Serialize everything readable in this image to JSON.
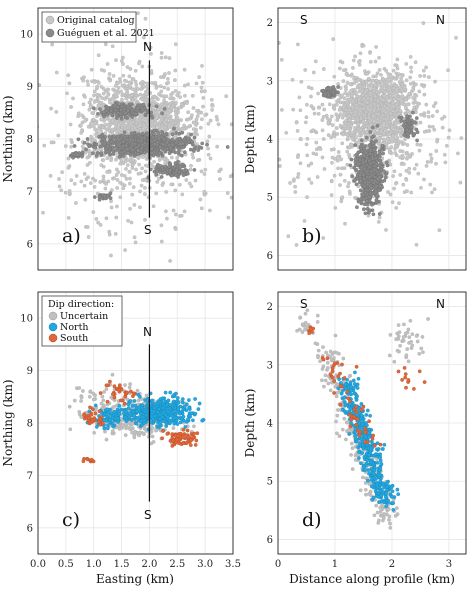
{
  "chart_data": [
    {
      "panel": "a",
      "type": "scatter",
      "panel_label": "a)",
      "xlabel": "",
      "ylabel": "Northing (km)",
      "xlim": [
        0,
        3.5
      ],
      "ylim": [
        5.5,
        10.5
      ],
      "xticks": [],
      "yticks": [
        "6",
        "7",
        "8",
        "9",
        "10"
      ],
      "grid": true,
      "legend": {
        "position": "top-left",
        "entries": [
          "Original catalog",
          "Guéguen et al. 2021"
        ]
      },
      "profile_line": {
        "x": 2.0,
        "y_start": 9.5,
        "y_end": 6.5,
        "start_label": "N",
        "end_label": "S"
      },
      "series": [
        {
          "name": "Original catalog",
          "color": "#c8c8c8",
          "clusters": [
            {
              "cx": 1.8,
              "cy": 8.3,
              "sx": 0.9,
              "sy": 0.8,
              "n": 1100
            },
            {
              "cx": 1.75,
              "cy": 8.0,
              "sx": 1.6,
              "sy": 1.6,
              "n": 520
            }
          ]
        },
        {
          "name": "Guéguen et al. 2021",
          "color": "#8a8a8a",
          "clusters": [
            {
              "cx": 1.9,
              "cy": 7.9,
              "sx": 0.85,
              "sy": 0.18,
              "n": 700
            },
            {
              "cx": 1.55,
              "cy": 8.55,
              "sx": 0.45,
              "sy": 0.12,
              "n": 200
            },
            {
              "cx": 2.4,
              "cy": 7.4,
              "sx": 0.3,
              "sy": 0.12,
              "n": 120
            },
            {
              "cx": 0.7,
              "cy": 7.7,
              "sx": 0.1,
              "sy": 0.05,
              "n": 30
            },
            {
              "cx": 1.2,
              "cy": 6.9,
              "sx": 0.15,
              "sy": 0.05,
              "n": 30
            }
          ]
        }
      ]
    },
    {
      "panel": "b",
      "type": "scatter",
      "panel_label": "b)",
      "xlabel": "",
      "ylabel": "Depth (km)",
      "xlim": [
        0,
        3.3
      ],
      "ylim": [
        6.25,
        1.75
      ],
      "xticks": [],
      "yticks": [
        "2",
        "3",
        "4",
        "5",
        "6"
      ],
      "grid": true,
      "profile_ends": {
        "left": "S",
        "right": "N"
      },
      "series": [
        {
          "name": "Original catalog",
          "color": "#c8c8c8",
          "clusters": [
            {
              "cx": 1.7,
              "cy": 3.5,
              "sx": 0.6,
              "sy": 0.6,
              "n": 1000
            },
            {
              "cx": 1.6,
              "cy": 3.8,
              "sx": 1.5,
              "sy": 1.4,
              "n": 520
            }
          ]
        },
        {
          "name": "Guéguen et al. 2021",
          "color": "#8a8a8a",
          "clusters": [
            {
              "cx": 1.6,
              "cy": 4.6,
              "sx": 0.22,
              "sy": 0.55,
              "n": 600
            },
            {
              "cx": 0.9,
              "cy": 3.2,
              "sx": 0.15,
              "sy": 0.1,
              "n": 60
            },
            {
              "cx": 2.3,
              "cy": 3.8,
              "sx": 0.15,
              "sy": 0.2,
              "n": 60
            }
          ]
        }
      ]
    },
    {
      "panel": "c",
      "type": "scatter",
      "panel_label": "c)",
      "xlabel": "Easting (km)",
      "ylabel": "Northing (km)",
      "xlim": [
        0,
        3.5
      ],
      "ylim": [
        5.5,
        10.5
      ],
      "xticks": [
        "0.0",
        "0.5",
        "1.0",
        "1.5",
        "2.0",
        "2.5",
        "3.0",
        "3.5"
      ],
      "yticks": [
        "6",
        "7",
        "8",
        "9",
        "10"
      ],
      "grid": true,
      "legend": {
        "position": "top-left",
        "title": "Dip direction:",
        "entries": [
          "Uncertain",
          "North",
          "South"
        ]
      },
      "profile_line": {
        "x": 2.0,
        "y_start": 9.5,
        "y_end": 6.5,
        "start_label": "N",
        "end_label": "S"
      },
      "series": [
        {
          "name": "Uncertain",
          "color": "#c0c0c0",
          "clusters": [
            {
              "cx": 1.9,
              "cy": 8.1,
              "sx": 0.7,
              "sy": 0.35,
              "n": 300
            },
            {
              "cx": 1.2,
              "cy": 8.4,
              "sx": 0.6,
              "sy": 0.5,
              "n": 80
            }
          ]
        },
        {
          "name": "North",
          "color": "#22a8e0",
          "clusters": [
            {
              "cx": 2.2,
              "cy": 8.2,
              "sx": 0.55,
              "sy": 0.25,
              "n": 420
            },
            {
              "cx": 1.3,
              "cy": 8.1,
              "sx": 0.35,
              "sy": 0.2,
              "n": 80
            }
          ]
        },
        {
          "name": "South",
          "color": "#e0673a",
          "clusters": [
            {
              "cx": 2.6,
              "cy": 7.7,
              "sx": 0.3,
              "sy": 0.15,
              "n": 70
            },
            {
              "cx": 1.0,
              "cy": 8.1,
              "sx": 0.2,
              "sy": 0.15,
              "n": 30
            },
            {
              "cx": 1.4,
              "cy": 8.6,
              "sx": 0.3,
              "sy": 0.2,
              "n": 30
            },
            {
              "cx": 0.9,
              "cy": 7.3,
              "sx": 0.1,
              "sy": 0.05,
              "n": 10
            }
          ]
        }
      ]
    },
    {
      "panel": "d",
      "type": "scatter",
      "panel_label": "d)",
      "xlabel": "Distance along profile (km)",
      "ylabel": "Depth (km)",
      "xlim": [
        0,
        3.3
      ],
      "ylim": [
        6.25,
        1.75
      ],
      "xticks": [
        "0",
        "1",
        "2",
        "3"
      ],
      "yticks": [
        "2",
        "3",
        "4",
        "5",
        "6"
      ],
      "grid": true,
      "profile_ends": {
        "left": "S",
        "right": "N"
      },
      "series": [
        {
          "name": "Uncertain",
          "color": "#c0c0c0",
          "band": {
            "x0": 0.8,
            "y0": 2.7,
            "x1": 1.95,
            "y1": 5.7,
            "spread": 0.12,
            "n": 260
          },
          "clusters": [
            {
              "cx": 2.3,
              "cy": 2.6,
              "sx": 0.35,
              "sy": 0.4,
              "n": 40
            },
            {
              "cx": 0.5,
              "cy": 2.3,
              "sx": 0.2,
              "sy": 0.2,
              "n": 20
            }
          ]
        },
        {
          "name": "North",
          "color": "#22a8e0",
          "band": {
            "x0": 1.2,
            "y0": 3.3,
            "x1": 1.9,
            "y1": 5.4,
            "spread": 0.09,
            "n": 380
          },
          "clusters": []
        },
        {
          "name": "South",
          "color": "#e0673a",
          "band": {
            "x0": 0.9,
            "y0": 2.9,
            "x1": 1.6,
            "y1": 4.3,
            "spread": 0.12,
            "n": 50
          },
          "clusters": [
            {
              "cx": 2.35,
              "cy": 3.2,
              "sx": 0.2,
              "sy": 0.25,
              "n": 12
            },
            {
              "cx": 0.6,
              "cy": 2.4,
              "sx": 0.1,
              "sy": 0.1,
              "n": 6
            }
          ]
        }
      ]
    }
  ]
}
